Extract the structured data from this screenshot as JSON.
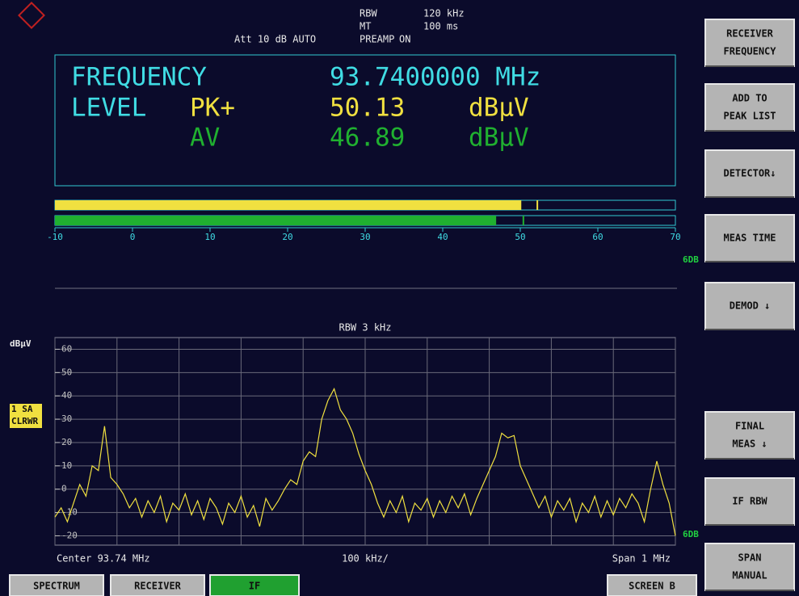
{
  "header": {
    "rbw_label": "RBW",
    "rbw_value": "120 kHz",
    "mt_label": "MT",
    "mt_value": "100 ms",
    "preamp_label": "PREAMP",
    "preamp_value": "ON",
    "att": "Att 10 dB AUTO"
  },
  "receiver": {
    "frequency_label": "FREQUENCY",
    "frequency_value": "93.7400000 MHz",
    "level_label": "LEVEL",
    "pk_label": "PK+",
    "pk_value": 50.13,
    "pk_unit": "dBµV",
    "av_label": "AV",
    "av_value": 46.89,
    "av_unit": "dBµV"
  },
  "bargraph": {
    "pk_max": 52.2,
    "av_max": 50.4,
    "xlim": [
      -10,
      70
    ],
    "xticks": [
      -10,
      0,
      10,
      20,
      30,
      40,
      50,
      60,
      70
    ],
    "limit_label": "6DB"
  },
  "chart_data": {
    "type": "line",
    "subtitle": "RBW 3 kHz",
    "y_label": "dBµV",
    "trace_label": "1 SA",
    "trace_mode": "CLRWR",
    "limit_label": "6DB",
    "center_label": "Center 93.74 MHz",
    "div_label": "100 kHz/",
    "span_label": "Span 1 MHz",
    "xlim": [
      93.24,
      94.24
    ],
    "xticks": [
      93.24,
      93.34,
      93.44,
      93.54,
      93.64,
      93.74,
      93.84,
      93.94,
      94.04,
      94.14,
      94.24
    ],
    "ylim": [
      -24,
      65
    ],
    "yticks": [
      60,
      50,
      40,
      30,
      20,
      10,
      0,
      -10,
      -20
    ],
    "grid": true,
    "series": [
      {
        "name": "1 SA",
        "color": "#f0e040",
        "x": [
          93.24,
          93.25,
          93.26,
          93.27,
          93.28,
          93.29,
          93.3,
          93.31,
          93.32,
          93.33,
          93.34,
          93.35,
          93.36,
          93.37,
          93.38,
          93.39,
          93.4,
          93.41,
          93.42,
          93.43,
          93.44,
          93.45,
          93.46,
          93.47,
          93.48,
          93.49,
          93.5,
          93.51,
          93.52,
          93.53,
          93.54,
          93.55,
          93.56,
          93.57,
          93.58,
          93.59,
          93.6,
          93.61,
          93.62,
          93.63,
          93.64,
          93.65,
          93.66,
          93.67,
          93.68,
          93.69,
          93.7,
          93.71,
          93.72,
          93.73,
          93.74,
          93.75,
          93.76,
          93.77,
          93.78,
          93.79,
          93.8,
          93.81,
          93.82,
          93.83,
          93.84,
          93.85,
          93.86,
          93.87,
          93.88,
          93.89,
          93.9,
          93.91,
          93.92,
          93.93,
          93.94,
          93.95,
          93.96,
          93.97,
          93.98,
          93.99,
          94.0,
          94.01,
          94.02,
          94.03,
          94.04,
          94.05,
          94.06,
          94.07,
          94.08,
          94.09,
          94.1,
          94.11,
          94.12,
          94.13,
          94.14,
          94.15,
          94.16,
          94.17,
          94.18,
          94.19,
          94.2,
          94.21,
          94.22,
          94.23,
          94.24
        ],
        "values": [
          -12,
          -8,
          -14,
          -6,
          2,
          -3,
          10,
          8,
          27,
          5,
          2,
          -2,
          -8,
          -4,
          -12,
          -5,
          -10,
          -3,
          -14,
          -6,
          -9,
          -2,
          -11,
          -5,
          -13,
          -4,
          -8,
          -15,
          -6,
          -10,
          -3,
          -12,
          -7,
          -16,
          -4,
          -9,
          -5,
          0,
          4,
          2,
          12,
          16,
          14,
          30,
          38,
          43,
          34,
          30,
          24,
          15,
          8,
          2,
          -6,
          -12,
          -5,
          -10,
          -3,
          -14,
          -6,
          -9,
          -4,
          -12,
          -5,
          -10,
          -3,
          -8,
          -2,
          -11,
          -4,
          2,
          8,
          14,
          24,
          22,
          23,
          10,
          4,
          -2,
          -8,
          -3,
          -12,
          -5,
          -9,
          -4,
          -14,
          -6,
          -10,
          -3,
          -12,
          -5,
          -11,
          -4,
          -8,
          -2,
          -6,
          -14,
          0,
          12,
          2,
          -6,
          -20
        ]
      }
    ]
  },
  "softkeys": [
    {
      "lines": [
        "RECEIVER",
        "FREQUENCY"
      ]
    },
    {
      "lines": [
        "ADD TO",
        "PEAK LIST"
      ]
    },
    {
      "lines": [
        "DETECTOR↓"
      ]
    },
    {
      "lines": [
        "MEAS TIME"
      ]
    },
    {
      "lines": [
        "DEMOD  ↓"
      ]
    },
    {
      "lines": [
        "FINAL",
        "MEAS  ↓"
      ]
    },
    {
      "lines": [
        "IF RBW"
      ]
    },
    {
      "lines": [
        "SPAN",
        "MANUAL"
      ]
    }
  ],
  "tabs": [
    "SPECTRUM",
    "RECEIVER",
    "IF",
    "SCREEN B"
  ]
}
